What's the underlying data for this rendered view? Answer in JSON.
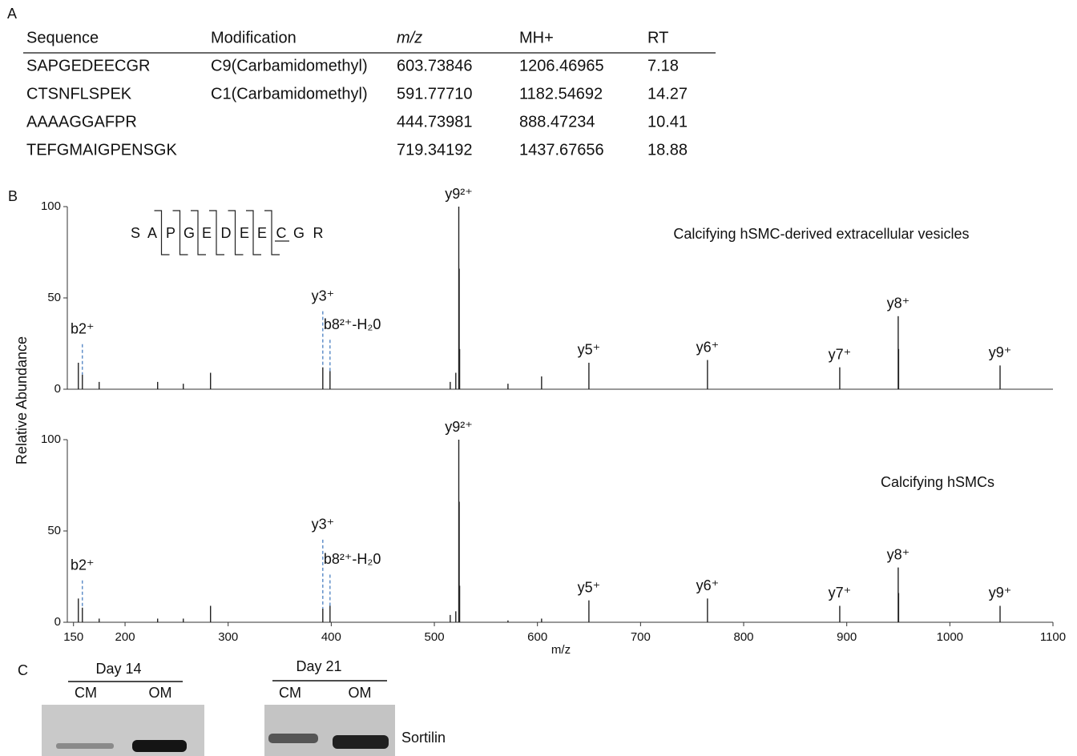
{
  "panel_labels": [
    "A",
    "B",
    "C"
  ],
  "table": {
    "header": [
      "Sequence",
      "Modification",
      "m/z",
      "MH+",
      "RT"
    ],
    "rows": [
      [
        "SAPGEDEECGR",
        "C9(Carbamidomethyl)",
        "603.73846",
        "1206.46965",
        "7.18"
      ],
      [
        "CTSNFLSPEK",
        "C1(Carbamidomethyl)",
        "591.77710",
        "1182.54692",
        "14.27"
      ],
      [
        "AAAAGGAFPR",
        null,
        "444.73981",
        "888.47234",
        "10.41"
      ],
      [
        "TEFGMAIGPENSGK",
        null,
        "719.34192",
        "1437.67656",
        "18.88"
      ]
    ]
  },
  "sequence_letters": [
    "S",
    "A",
    "P",
    "G",
    "E",
    "D",
    "E",
    "E",
    "C",
    "G",
    "R"
  ],
  "chart_data": [
    {
      "type": "stick",
      "title": "Calcifying hSMC-derived extracellular vesicles",
      "y_label": "Relative Abundance",
      "color": "#222222",
      "x": [
        154.7,
        158.6,
        174.9,
        231.6,
        256.5,
        282.9,
        391.8,
        398.8,
        515.4,
        520.8,
        523.7,
        524.1,
        524.5,
        571.4,
        604.0,
        649.9,
        764.9,
        893.2,
        949.9,
        950.3,
        1048.7
      ],
      "values": [
        14.5,
        8,
        4,
        4,
        3,
        9,
        12,
        10,
        4,
        9,
        100,
        66,
        22,
        3,
        7,
        14.5,
        16,
        12,
        40,
        22,
        13
      ],
      "peak_labels": [
        null,
        "b2⁺",
        null,
        null,
        null,
        null,
        "y3⁺",
        "b8²⁺-H₂0",
        null,
        null,
        "y9²⁺",
        null,
        null,
        null,
        null,
        "y5⁺",
        "y6⁺",
        "y7⁺",
        "y8⁺",
        null,
        "y9⁺"
      ],
      "xlim": [
        144,
        1100
      ],
      "ylim": [
        0,
        100
      ],
      "yticks": [
        0,
        50,
        100
      ]
    },
    {
      "type": "stick",
      "title": "Calcifying hSMCs",
      "x_label": "m/z",
      "color": "#222222",
      "x": [
        154.7,
        158.6,
        174.9,
        231.6,
        256.5,
        282.9,
        391.8,
        398.8,
        515.4,
        520.8,
        523.7,
        524.1,
        524.5,
        571.4,
        604.0,
        649.9,
        764.9,
        893.2,
        949.9,
        950.3,
        1048.7
      ],
      "values": [
        13,
        8,
        2,
        2,
        2,
        9,
        7.5,
        9,
        4,
        6,
        100,
        66,
        20,
        1,
        2,
        12,
        13,
        9,
        30,
        16,
        9
      ],
      "peak_labels": [
        null,
        "b2⁺",
        null,
        null,
        null,
        null,
        "y3⁺",
        "b8²⁺-H₂0",
        null,
        null,
        "y9²⁺",
        null,
        null,
        null,
        null,
        "y5⁺",
        "y6⁺",
        "y7⁺",
        "y8⁺",
        null,
        "y9⁺"
      ],
      "xlim": [
        144,
        1100
      ],
      "xticks": [
        150,
        200,
        300,
        400,
        500,
        600,
        700,
        800,
        900,
        1000,
        1100
      ],
      "ylim": [
        0,
        100
      ],
      "yticks": [
        0,
        50,
        100
      ]
    }
  ],
  "blot": {
    "groups": [
      "Day 14",
      "Day 21"
    ],
    "lanes": [
      "CM",
      "OM",
      "CM",
      "OM"
    ],
    "protein": "Sortilin"
  }
}
